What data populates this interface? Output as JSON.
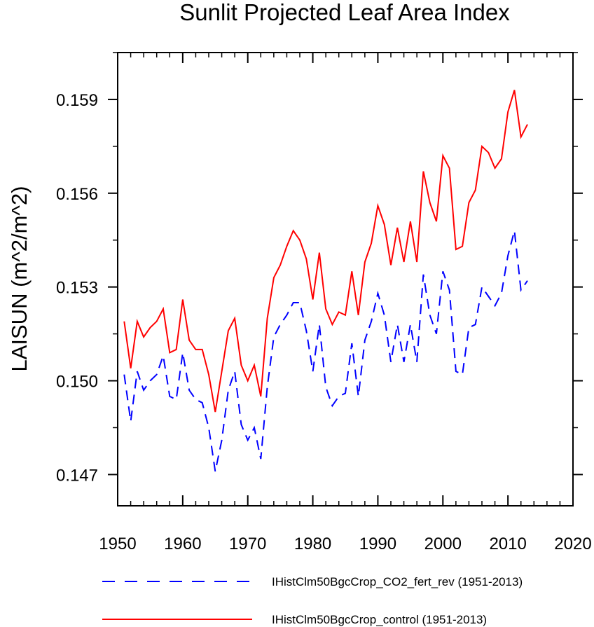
{
  "chart_data": {
    "type": "line",
    "title": "Sunlit Projected Leaf Area Index",
    "xlabel": "",
    "ylabel": "LAISUN  (m^2/m^2)",
    "xlim": [
      1950,
      2020
    ],
    "ylim": [
      0.146,
      0.1605
    ],
    "xticks": [
      1950,
      1960,
      1970,
      1980,
      1990,
      2000,
      2010,
      2020
    ],
    "xtick_labels": [
      "1950",
      "1960",
      "1970",
      "1980",
      "1990",
      "2000",
      "2010",
      "2020"
    ],
    "yticks": [
      0.147,
      0.15,
      0.153,
      0.156,
      0.159
    ],
    "ytick_labels": [
      "0.147",
      "0.150",
      "0.153",
      "0.156",
      "0.159"
    ],
    "grid": false,
    "legend_position": "bottom",
    "x": [
      1951,
      1952,
      1953,
      1954,
      1955,
      1956,
      1957,
      1958,
      1959,
      1960,
      1961,
      1962,
      1963,
      1964,
      1965,
      1966,
      1967,
      1968,
      1969,
      1970,
      1971,
      1972,
      1973,
      1974,
      1975,
      1976,
      1977,
      1978,
      1979,
      1980,
      1981,
      1982,
      1983,
      1984,
      1985,
      1986,
      1987,
      1988,
      1989,
      1990,
      1991,
      1992,
      1993,
      1994,
      1995,
      1996,
      1997,
      1998,
      1999,
      2000,
      2001,
      2002,
      2003,
      2004,
      2005,
      2006,
      2007,
      2008,
      2009,
      2010,
      2011,
      2012,
      2013
    ],
    "series": [
      {
        "name": "IHistClm50BgcCrop_CO2_fert_rev (1951-2013)",
        "color": "#0000ff",
        "dash": "dashed",
        "values": [
          0.1502,
          0.1487,
          0.1503,
          0.1497,
          0.15,
          0.1502,
          0.1508,
          0.1495,
          0.1494,
          0.1509,
          0.1497,
          0.1494,
          0.1493,
          0.1485,
          0.1471,
          0.1481,
          0.1497,
          0.1503,
          0.1486,
          0.1481,
          0.1485,
          0.1475,
          0.1498,
          0.1514,
          0.1518,
          0.1521,
          0.1525,
          0.1525,
          0.1516,
          0.1503,
          0.1518,
          0.1498,
          0.1492,
          0.1495,
          0.1496,
          0.1512,
          0.1495,
          0.1513,
          0.1519,
          0.1528,
          0.1521,
          0.1506,
          0.1518,
          0.1506,
          0.1518,
          0.1506,
          0.1534,
          0.1521,
          0.1515,
          0.1535,
          0.1529,
          0.1503,
          0.1502,
          0.1517,
          0.1518,
          0.153,
          0.1527,
          0.1524,
          0.1528,
          0.154,
          0.1548,
          0.1529,
          0.1532
        ]
      },
      {
        "name": "IHistClm50BgcCrop_control (1951-2013)",
        "color": "#ff0000",
        "dash": "solid",
        "values": [
          0.1519,
          0.1504,
          0.1519,
          0.1514,
          0.1517,
          0.1519,
          0.1523,
          0.1509,
          0.151,
          0.1526,
          0.1513,
          0.151,
          0.151,
          0.1502,
          0.149,
          0.1503,
          0.1516,
          0.152,
          0.1505,
          0.15,
          0.1505,
          0.1495,
          0.152,
          0.1533,
          0.1537,
          0.1543,
          0.1548,
          0.1545,
          0.1539,
          0.1526,
          0.1541,
          0.1523,
          0.1518,
          0.1522,
          0.1521,
          0.1535,
          0.1521,
          0.1538,
          0.1544,
          0.1556,
          0.155,
          0.1537,
          0.1549,
          0.1538,
          0.1551,
          0.1538,
          0.1567,
          0.1557,
          0.1551,
          0.1572,
          0.1568,
          0.1542,
          0.1543,
          0.1557,
          0.1561,
          0.1575,
          0.1573,
          0.1568,
          0.1571,
          0.1586,
          0.1593,
          0.1578,
          0.1582
        ]
      }
    ]
  }
}
